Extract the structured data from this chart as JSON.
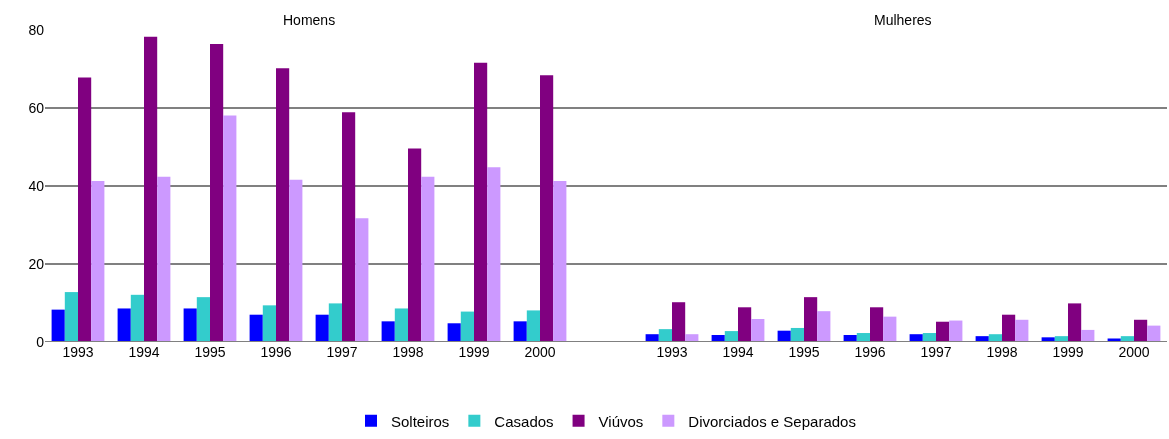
{
  "chart_data": {
    "type": "bar",
    "categories": [
      "1993",
      "1994",
      "1995",
      "1996",
      "1997",
      "1998",
      "1999",
      "2000",
      null,
      "1993",
      "1994",
      "1995",
      "1996",
      "1997",
      "1998",
      "1999",
      "2000"
    ],
    "annotations": [
      "Homens",
      "Mulheres"
    ],
    "series": [
      {
        "name": "Solteiros",
        "color": "#0000ff",
        "values": [
          8.3,
          8.6,
          8.6,
          7.0,
          7.0,
          5.3,
          4.8,
          5.3,
          null,
          2.0,
          1.8,
          2.9,
          1.8,
          2.0,
          1.5,
          1.2,
          0.9
        ]
      },
      {
        "name": "Casados",
        "color": "#33cccc",
        "values": [
          12.8,
          12.1,
          11.5,
          9.4,
          9.9,
          8.6,
          7.8,
          8.1,
          null,
          3.3,
          2.8,
          3.6,
          2.3,
          2.3,
          2.0,
          1.5,
          1.5
        ]
      },
      {
        "name": "Viúvos",
        "color": "#800080",
        "values": [
          67.8,
          78.3,
          76.4,
          70.2,
          58.9,
          49.6,
          71.6,
          68.4,
          null,
          10.2,
          8.9,
          11.5,
          8.9,
          5.2,
          7.0,
          9.9,
          5.7
        ]
      },
      {
        "name": "Divorciados e Separados",
        "color": "#cc99ff",
        "values": [
          41.3,
          42.4,
          58.1,
          41.6,
          31.7,
          42.4,
          44.8,
          41.3,
          null,
          2.0,
          5.9,
          7.9,
          6.5,
          5.5,
          5.7,
          3.1,
          4.2
        ]
      }
    ],
    "ylim": [
      0,
      80
    ],
    "yticks": [
      0,
      20,
      40,
      60,
      80
    ],
    "grid": "y",
    "legend": "bottom"
  }
}
